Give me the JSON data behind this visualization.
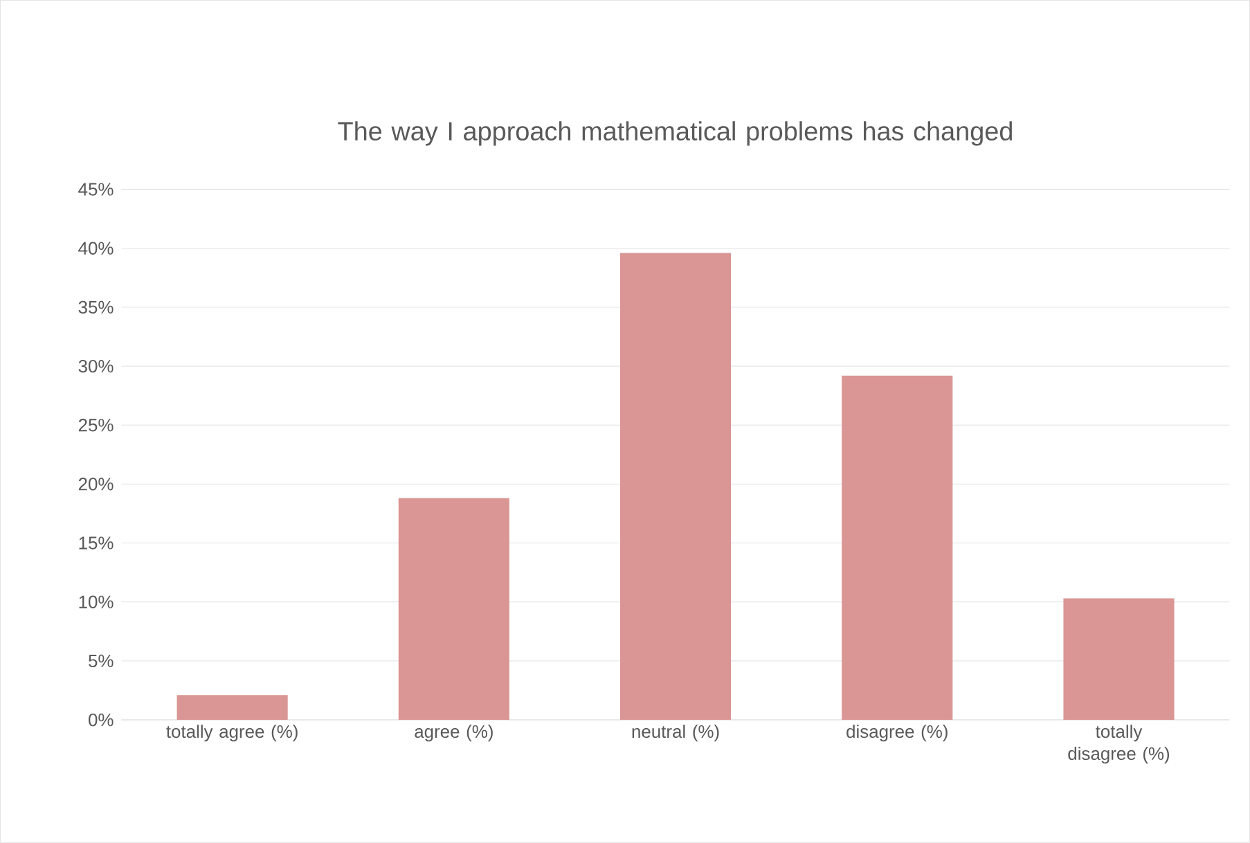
{
  "chart_data": {
    "type": "bar",
    "title": "The way I approach mathematical problems has changed",
    "categories": [
      "totally agree (%)",
      "agree (%)",
      "neutral (%)",
      "disagree (%)",
      "totally disagree (%)"
    ],
    "values": [
      2.1,
      18.8,
      39.6,
      29.2,
      10.3
    ],
    "color": "#d99694",
    "ylim": [
      0,
      45
    ],
    "yticks": [
      {
        "value": 0,
        "label": "0%"
      },
      {
        "value": 5,
        "label": "5%"
      },
      {
        "value": 10,
        "label": "10%"
      },
      {
        "value": 15,
        "label": "15%"
      },
      {
        "value": 20,
        "label": "20%"
      },
      {
        "value": 25,
        "label": "25%"
      },
      {
        "value": 30,
        "label": "30%"
      },
      {
        "value": 35,
        "label": "35%"
      },
      {
        "value": 40,
        "label": "40%"
      },
      {
        "value": 45,
        "label": "45%"
      }
    ],
    "grid": "y"
  }
}
